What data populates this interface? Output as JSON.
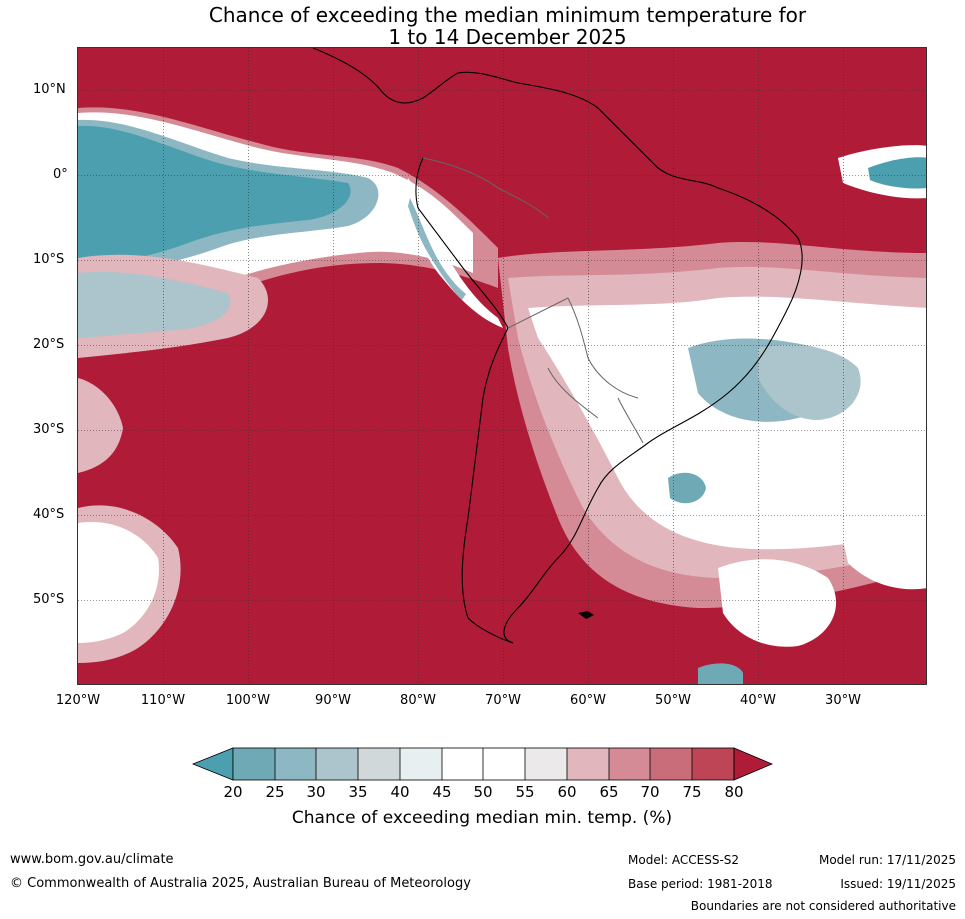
{
  "title": {
    "line1": "Chance of exceeding the median minimum temperature for",
    "line2": "1 to 14 December 2025"
  },
  "map": {
    "lat_ticks": [
      "10°N",
      "0°",
      "10°S",
      "20°S",
      "30°S",
      "40°S",
      "50°S"
    ],
    "lon_ticks": [
      "120°W",
      "110°W",
      "100°W",
      "90°W",
      "80°W",
      "70°W",
      "60°W",
      "50°W",
      "40°W",
      "30°W"
    ],
    "extent": {
      "lon_min": -120,
      "lon_max": -20,
      "lat_min": -60,
      "lat_max": 15
    },
    "colors": {
      "ocean_high": "#b01c37",
      "c20": "#4b9fae",
      "c25": "#6fa9b6",
      "c30": "#8db7c3",
      "c35": "#acc4cb",
      "c40": "#d1d8d9",
      "c45": "#e8eff1",
      "c50": "#ffffff",
      "c55": "#ffffff",
      "c60": "#ebe9ea",
      "c65": "#e1b6bd",
      "c70": "#d48b96",
      "c75": "#c86d79",
      "c80": "#bd4556"
    }
  },
  "colorbar": {
    "labels": [
      "20",
      "25",
      "30",
      "35",
      "40",
      "45",
      "50",
      "55",
      "60",
      "65",
      "70",
      "75",
      "80"
    ],
    "title": "Chance of exceeding median min. temp. (%)"
  },
  "footer": {
    "website": "www.bom.gov.au/climate",
    "copyright": "© Commonwealth of Australia 2025, Australian Bureau of Meteorology",
    "model": "Model: ACCESS-S2",
    "base_period": "Base period: 1981-2018",
    "model_run": "Model run: 17/11/2025",
    "issued": "Issued: 19/11/2025",
    "disclaimer": "Boundaries are not considered authoritative"
  }
}
